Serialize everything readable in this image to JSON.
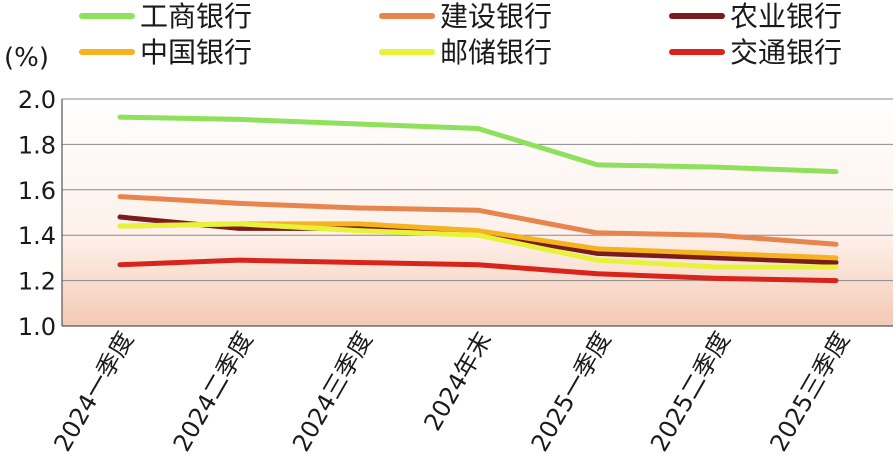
{
  "chart_data": {
    "type": "line",
    "ylabel": "(%)",
    "ylim": [
      1.0,
      2.0
    ],
    "yticks": [
      "1.0",
      "1.2",
      "1.4",
      "1.6",
      "1.8",
      "2.0"
    ],
    "categories": [
      "2024一季度",
      "2024二季度",
      "2024三季度",
      "2024年末",
      "2025一季度",
      "2025二季度",
      "2025三季度"
    ],
    "grid": true,
    "legend_position": "top",
    "series": [
      {
        "name": "工商银行",
        "color": "#8fe05a",
        "values": [
          1.92,
          1.91,
          1.89,
          1.87,
          1.71,
          1.7,
          1.68
        ]
      },
      {
        "name": "建设银行",
        "color": "#e8854f",
        "values": [
          1.57,
          1.54,
          1.52,
          1.51,
          1.41,
          1.4,
          1.36
        ]
      },
      {
        "name": "农业银行",
        "color": "#7a1c1c",
        "values": [
          1.48,
          1.43,
          1.43,
          1.41,
          1.32,
          1.3,
          1.28
        ]
      },
      {
        "name": "中国银行",
        "color": "#f4b31f",
        "values": [
          1.44,
          1.45,
          1.45,
          1.42,
          1.34,
          1.32,
          1.3
        ]
      },
      {
        "name": "邮储银行",
        "color": "#e8f23a",
        "values": [
          1.44,
          1.45,
          1.42,
          1.4,
          1.29,
          1.26,
          1.26
        ]
      },
      {
        "name": "交通银行",
        "color": "#d8241b",
        "values": [
          1.27,
          1.29,
          1.28,
          1.27,
          1.23,
          1.21,
          1.2
        ]
      }
    ]
  }
}
